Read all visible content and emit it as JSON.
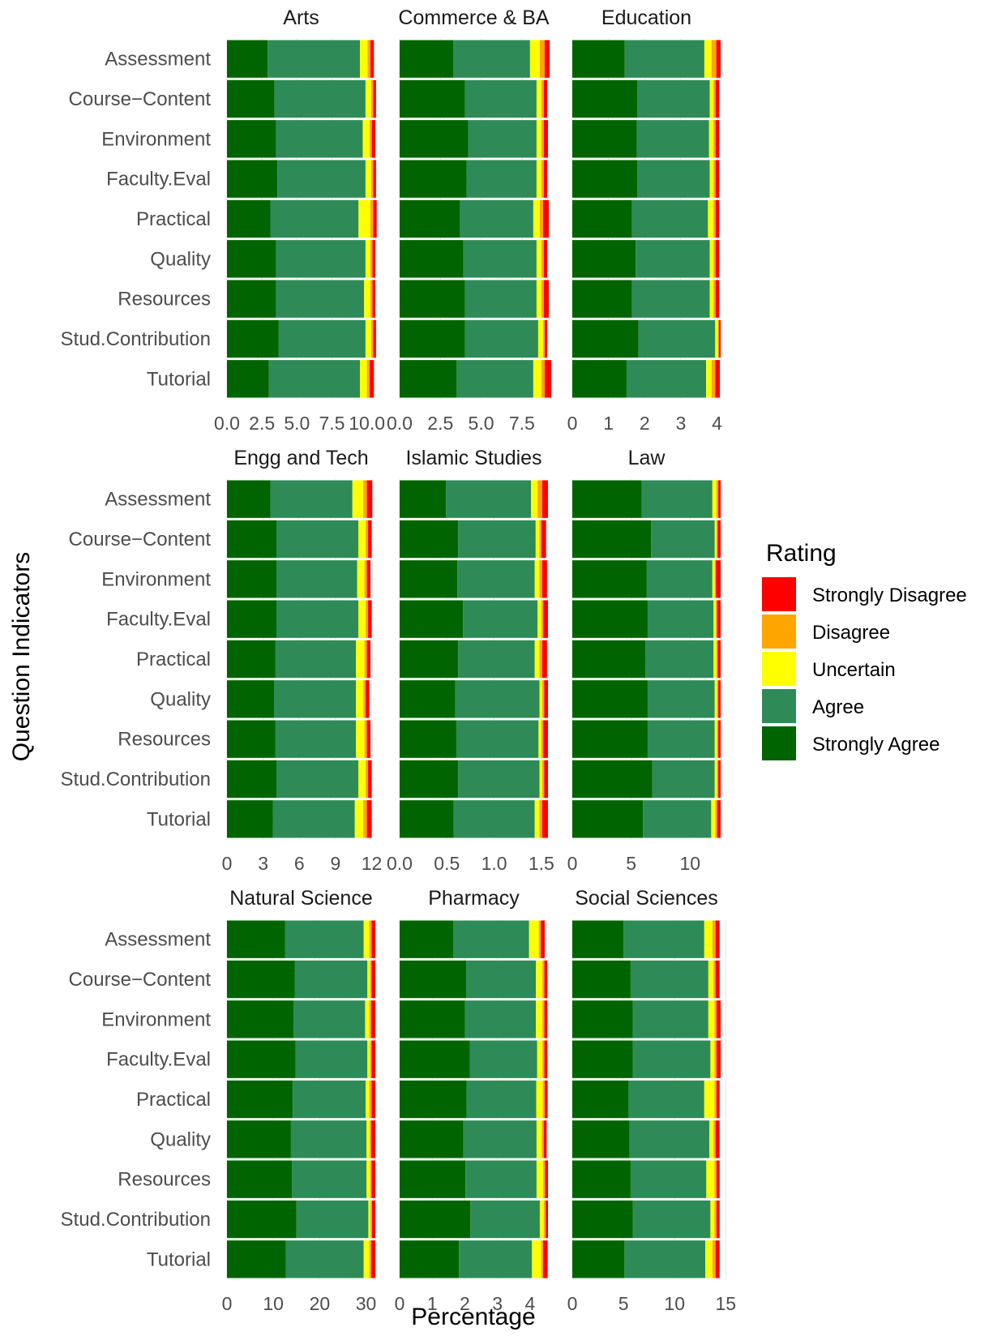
{
  "chart_data": {
    "type": "bar",
    "orientation": "horizontal",
    "stacked": true,
    "xlabel": "Percentage",
    "ylabel": "Question Indicators",
    "categories": [
      "Assessment",
      "Course−Content",
      "Environment",
      "Faculty.Eval",
      "Practical",
      "Quality",
      "Resources",
      "Stud.Contribution",
      "Tutorial"
    ],
    "legend": {
      "title": "Rating",
      "position": "right",
      "items": [
        {
          "label": "Strongly Disagree",
          "color": "#ff0000"
        },
        {
          "label": "Disagree",
          "color": "#ffa500"
        },
        {
          "label": "Uncertain",
          "color": "#ffff00"
        },
        {
          "label": "Agree",
          "color": "#2e8b57"
        },
        {
          "label": "Strongly Agree",
          "color": "#006400"
        }
      ]
    },
    "stack_order": [
      "Strongly Agree",
      "Agree",
      "Uncertain",
      "Disagree",
      "Strongly Disagree"
    ],
    "colors": {
      "Strongly Agree": "#006400",
      "Agree": "#2e8b57",
      "Uncertain": "#ffff00",
      "Disagree": "#ffa500",
      "Strongly Disagree": "#ff0000"
    },
    "panels": [
      {
        "title": "Arts",
        "xlim": [
          0,
          10.6
        ],
        "ticks": [
          "0.0",
          "2.5",
          "5.0",
          "7.5",
          "10.0"
        ],
        "tick_values": [
          0,
          2.5,
          5,
          7.5,
          10
        ],
        "values": {
          "Strongly Agree": [
            2.9,
            3.4,
            3.5,
            3.6,
            3.1,
            3.5,
            3.5,
            3.7,
            3.0
          ],
          "Agree": [
            6.6,
            6.5,
            6.2,
            6.3,
            6.3,
            6.4,
            6.3,
            6.2,
            6.5
          ],
          "Uncertain": [
            0.55,
            0.4,
            0.5,
            0.4,
            0.85,
            0.35,
            0.45,
            0.4,
            0.5
          ],
          "Disagree": [
            0.2,
            0.15,
            0.15,
            0.15,
            0.2,
            0.15,
            0.15,
            0.15,
            0.2
          ],
          "Strongly Disagree": [
            0.25,
            0.2,
            0.25,
            0.2,
            0.25,
            0.2,
            0.2,
            0.2,
            0.3
          ]
        }
      },
      {
        "title": "Commerce & BA",
        "xlim": [
          0,
          9.1
        ],
        "ticks": [
          "0.0",
          "2.5",
          "5.0",
          "7.5"
        ],
        "tick_values": [
          0,
          2.5,
          5,
          7.5
        ],
        "values": {
          "Strongly Agree": [
            3.3,
            4.0,
            4.2,
            4.1,
            3.7,
            3.9,
            4.0,
            4.0,
            3.5
          ],
          "Agree": [
            4.7,
            4.4,
            4.2,
            4.3,
            4.5,
            4.5,
            4.4,
            4.5,
            4.7
          ],
          "Uncertain": [
            0.6,
            0.3,
            0.3,
            0.3,
            0.4,
            0.3,
            0.3,
            0.3,
            0.5
          ],
          "Disagree": [
            0.3,
            0.15,
            0.15,
            0.15,
            0.2,
            0.15,
            0.15,
            0.1,
            0.2
          ],
          "Strongly Disagree": [
            0.3,
            0.2,
            0.25,
            0.2,
            0.35,
            0.2,
            0.3,
            0.15,
            0.4
          ]
        }
      },
      {
        "title": "Education",
        "xlim": [
          0,
          4.1
        ],
        "ticks": [
          "0",
          "1",
          "2",
          "3",
          "4"
        ],
        "tick_values": [
          0,
          1,
          2,
          3,
          4
        ],
        "values": {
          "Strongly Agree": [
            1.45,
            1.8,
            1.78,
            1.8,
            1.65,
            1.75,
            1.65,
            1.83,
            1.5
          ],
          "Agree": [
            2.2,
            2.0,
            2.0,
            2.0,
            2.1,
            2.05,
            2.15,
            2.12,
            2.2
          ],
          "Uncertain": [
            0.2,
            0.1,
            0.12,
            0.1,
            0.15,
            0.1,
            0.1,
            0.08,
            0.15
          ],
          "Disagree": [
            0.13,
            0.06,
            0.06,
            0.06,
            0.06,
            0.06,
            0.06,
            0.02,
            0.1
          ],
          "Strongly Disagree": [
            0.12,
            0.1,
            0.1,
            0.1,
            0.1,
            0.1,
            0.1,
            0.05,
            0.13
          ]
        }
      },
      {
        "title": "Engg and Tech",
        "xlim": [
          0,
          12.3
        ],
        "ticks": [
          "0",
          "3",
          "6",
          "9",
          "12"
        ],
        "tick_values": [
          0,
          3,
          6,
          9,
          12
        ],
        "values": {
          "Strongly Agree": [
            3.6,
            4.1,
            4.1,
            4.1,
            4.0,
            3.9,
            4.0,
            4.1,
            3.8
          ],
          "Agree": [
            6.8,
            6.8,
            6.7,
            6.8,
            6.7,
            6.8,
            6.7,
            6.8,
            6.8
          ],
          "Uncertain": [
            0.9,
            0.6,
            0.6,
            0.6,
            0.7,
            0.6,
            0.7,
            0.6,
            0.7
          ],
          "Disagree": [
            0.3,
            0.2,
            0.2,
            0.2,
            0.2,
            0.2,
            0.2,
            0.2,
            0.3
          ],
          "Strongly Disagree": [
            0.45,
            0.3,
            0.3,
            0.3,
            0.3,
            0.3,
            0.3,
            0.3,
            0.4
          ]
        }
      },
      {
        "title": "Islamic Studies",
        "xlim": [
          0,
          1.57
        ],
        "ticks": [
          "0.0",
          "0.5",
          "1.0",
          "1.5"
        ],
        "tick_values": [
          0,
          0.5,
          1,
          1.5
        ],
        "values": {
          "Strongly Agree": [
            0.49,
            0.62,
            0.61,
            0.67,
            0.62,
            0.59,
            0.6,
            0.62,
            0.57
          ],
          "Agree": [
            0.9,
            0.82,
            0.82,
            0.79,
            0.81,
            0.89,
            0.87,
            0.86,
            0.86
          ],
          "Uncertain": [
            0.07,
            0.04,
            0.05,
            0.04,
            0.05,
            0.03,
            0.03,
            0.03,
            0.05
          ],
          "Disagree": [
            0.05,
            0.02,
            0.03,
            0.02,
            0.03,
            0.02,
            0.02,
            0.02,
            0.03
          ],
          "Strongly Disagree": [
            0.06,
            0.05,
            0.05,
            0.05,
            0.05,
            0.04,
            0.05,
            0.04,
            0.06
          ]
        }
      },
      {
        "title": "Law",
        "xlim": [
          0,
          12.6
        ],
        "ticks": [
          "0",
          "5",
          "10"
        ],
        "tick_values": [
          0,
          5,
          10
        ],
        "values": {
          "Strongly Agree": [
            5.9,
            6.7,
            6.3,
            6.4,
            6.2,
            6.4,
            6.4,
            6.8,
            6.0
          ],
          "Agree": [
            6.0,
            5.4,
            5.6,
            5.6,
            5.8,
            5.7,
            5.7,
            5.3,
            5.8
          ],
          "Uncertain": [
            0.35,
            0.15,
            0.2,
            0.2,
            0.25,
            0.2,
            0.2,
            0.2,
            0.35
          ],
          "Disagree": [
            0.15,
            0.1,
            0.1,
            0.1,
            0.1,
            0.1,
            0.1,
            0.1,
            0.15
          ],
          "Strongly Disagree": [
            0.2,
            0.25,
            0.4,
            0.3,
            0.25,
            0.2,
            0.2,
            0.2,
            0.3
          ]
        }
      },
      {
        "title": "Natural Science",
        "xlim": [
          0,
          32
        ],
        "ticks": [
          "0",
          "10",
          "20",
          "30"
        ],
        "tick_values": [
          0,
          10,
          20,
          30
        ],
        "values": {
          "Strongly Agree": [
            12.5,
            14.6,
            14.4,
            14.8,
            14.2,
            13.8,
            14.0,
            15.0,
            12.7
          ],
          "Agree": [
            17.0,
            15.7,
            15.4,
            15.5,
            15.7,
            16.3,
            16.1,
            15.5,
            16.8
          ],
          "Uncertain": [
            1.2,
            0.6,
            0.9,
            0.6,
            0.8,
            0.7,
            0.8,
            0.5,
            1.2
          ],
          "Disagree": [
            0.5,
            0.3,
            0.4,
            0.3,
            0.5,
            0.3,
            0.3,
            0.3,
            0.4
          ],
          "Strongly Disagree": [
            0.8,
            0.8,
            0.9,
            0.8,
            0.8,
            0.9,
            0.8,
            0.7,
            0.9
          ]
        }
      },
      {
        "title": "Pharmacy",
        "xlim": [
          0,
          4.55
        ],
        "ticks": [
          "0",
          "1",
          "2",
          "3",
          "4"
        ],
        "tick_values": [
          0,
          1,
          2,
          3,
          4
        ],
        "values": {
          "Strongly Agree": [
            1.65,
            2.04,
            2.0,
            2.15,
            2.05,
            1.95,
            2.02,
            2.17,
            1.82
          ],
          "Agree": [
            2.32,
            2.14,
            2.18,
            2.07,
            2.14,
            2.25,
            2.18,
            2.13,
            2.24
          ],
          "Uncertain": [
            0.3,
            0.2,
            0.2,
            0.16,
            0.2,
            0.16,
            0.2,
            0.12,
            0.28
          ],
          "Disagree": [
            0.06,
            0.06,
            0.06,
            0.06,
            0.06,
            0.06,
            0.06,
            0.06,
            0.06
          ],
          "Strongly Disagree": [
            0.12,
            0.09,
            0.09,
            0.09,
            0.09,
            0.09,
            0.09,
            0.07,
            0.14
          ]
        }
      },
      {
        "title": "Social Sciences",
        "xlim": [
          0,
          14.5
        ],
        "ticks": [
          "0",
          "5",
          "10",
          "15"
        ],
        "tick_values": [
          0,
          5,
          10,
          15
        ],
        "values": {
          "Strongly Agree": [
            5.0,
            5.7,
            5.9,
            5.9,
            5.5,
            5.6,
            5.7,
            5.9,
            5.1
          ],
          "Agree": [
            7.9,
            7.6,
            7.4,
            7.6,
            7.4,
            7.8,
            7.4,
            7.6,
            7.9
          ],
          "Uncertain": [
            0.8,
            0.5,
            0.6,
            0.4,
            1.0,
            0.4,
            0.8,
            0.4,
            0.7
          ],
          "Disagree": [
            0.3,
            0.2,
            0.2,
            0.2,
            0.2,
            0.2,
            0.2,
            0.2,
            0.3
          ],
          "Strongly Disagree": [
            0.4,
            0.4,
            0.4,
            0.4,
            0.3,
            0.4,
            0.3,
            0.3,
            0.4
          ]
        }
      }
    ]
  }
}
